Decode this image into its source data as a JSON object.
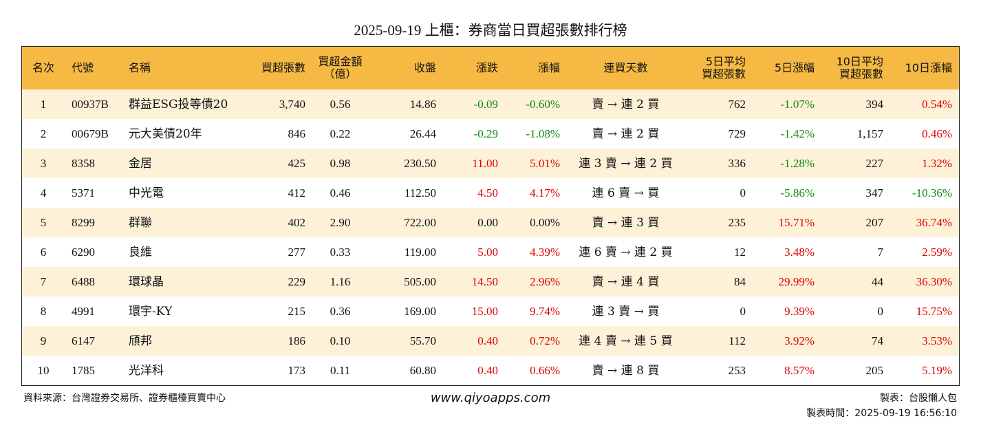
{
  "title": "2025-09-19 上櫃：券商當日買超張數排行榜",
  "table": {
    "header": [
      [
        "名次"
      ],
      [
        "代號"
      ],
      [
        "名稱"
      ],
      [
        "買超張數"
      ],
      [
        "買超金額",
        "（億）"
      ],
      [
        "收盤"
      ],
      [
        "漲跌"
      ],
      [
        "漲幅"
      ],
      [
        "連買天數"
      ],
      [
        "5日平均",
        "買超張數"
      ],
      [
        "5日漲幅"
      ],
      [
        "10日平均",
        "買超張數"
      ],
      [
        "10日漲幅"
      ]
    ],
    "rows": [
      [
        "1",
        "00937B",
        "群益ESG投等債20",
        "3,740",
        "0.56",
        "14.86",
        "-0.09",
        "-0.60%",
        "賣 → 連 2 買",
        "762",
        "-1.07%",
        "394",
        "0.54%"
      ],
      [
        "2",
        "00679B",
        "元大美債20年",
        "846",
        "0.22",
        "26.44",
        "-0.29",
        "-1.08%",
        "賣 → 連 2 買",
        "729",
        "-1.42%",
        "1,157",
        "0.46%"
      ],
      [
        "3",
        "8358",
        "金居",
        "425",
        "0.98",
        "230.50",
        "11.00",
        "5.01%",
        "連 3 賣 → 連 2 買",
        "336",
        "-1.28%",
        "227",
        "1.32%"
      ],
      [
        "4",
        "5371",
        "中光電",
        "412",
        "0.46",
        "112.50",
        "4.50",
        "4.17%",
        "連 6 賣 → 買",
        "0",
        "-5.86%",
        "347",
        "-10.36%"
      ],
      [
        "5",
        "8299",
        "群聯",
        "402",
        "2.90",
        "722.00",
        "0.00",
        "0.00%",
        "賣 → 連 3 買",
        "235",
        "15.71%",
        "207",
        "36.74%"
      ],
      [
        "6",
        "6290",
        "良維",
        "277",
        "0.33",
        "119.00",
        "5.00",
        "4.39%",
        "連 6 賣 → 連 2 買",
        "12",
        "3.48%",
        "7",
        "2.59%"
      ],
      [
        "7",
        "6488",
        "環球晶",
        "229",
        "1.16",
        "505.00",
        "14.50",
        "2.96%",
        "賣 → 連 4 買",
        "84",
        "29.99%",
        "44",
        "36.30%"
      ],
      [
        "8",
        "4991",
        "環宇-KY",
        "215",
        "0.36",
        "169.00",
        "15.00",
        "9.74%",
        "連 3 賣 → 買",
        "0",
        "9.39%",
        "0",
        "15.75%"
      ],
      [
        "9",
        "6147",
        "頎邦",
        "186",
        "0.10",
        "55.70",
        "0.40",
        "0.72%",
        "連 4 賣 → 連 5 買",
        "112",
        "3.92%",
        "74",
        "3.53%"
      ],
      [
        "10",
        "1785",
        "光洋科",
        "173",
        "0.11",
        "60.80",
        "0.40",
        "0.66%",
        "賣 → 連 8 買",
        "253",
        "8.57%",
        "205",
        "5.19%"
      ]
    ]
  },
  "footer": {
    "source": "資料來源：台灣證券交易所、證券櫃檯買賣中心",
    "url": "www.qiyoapps.com",
    "maker": "製表：台股懶人包",
    "time": "製表時間：2025-09-19 16:56:10"
  },
  "up_color": "#e00000",
  "down_color": "#118a11",
  "header_color": "#f6b944",
  "stripe_color": "#fdf1d8"
}
